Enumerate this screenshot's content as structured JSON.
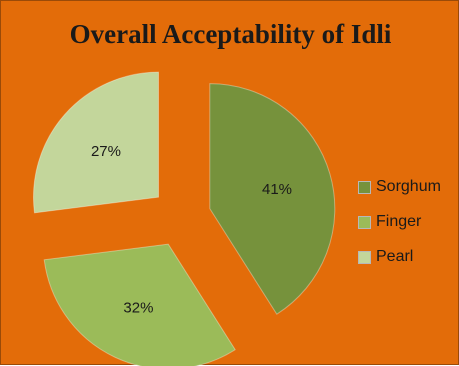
{
  "chart_data": {
    "type": "pie",
    "title": "Overall Acceptability of Idli",
    "categories": [
      "Sorghum",
      "Finger",
      "Pearl"
    ],
    "values": [
      41,
      32,
      27
    ],
    "labels": [
      "41%",
      "32%",
      "27%"
    ],
    "colors": [
      "#76923c",
      "#9bbb59",
      "#c3d69b"
    ],
    "background": "#e36c09",
    "exploded": true,
    "legend_position": "right"
  }
}
